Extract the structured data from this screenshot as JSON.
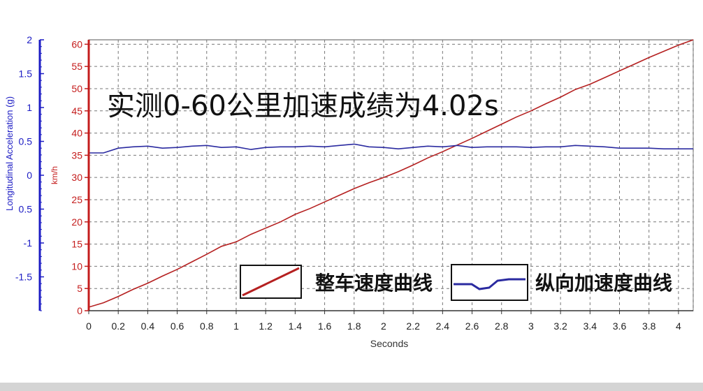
{
  "chart_data": {
    "type": "line",
    "title": "实测0-60公里加速成绩为4.02s",
    "xlabel": "Seconds",
    "y_left_outer_label": "Longitudinal Acceleration (g)",
    "y_left_inner_label": "km/h",
    "xlim": [
      0,
      4.1
    ],
    "ylim_speed": [
      0,
      61
    ],
    "ylim_accel": [
      -2,
      2
    ],
    "x_ticks": [
      "0",
      "0.2",
      "0.4",
      "0.6",
      "0.8",
      "1",
      "1.2",
      "1.4",
      "1.6",
      "1.8",
      "2",
      "2.2",
      "2.4",
      "2.6",
      "2.8",
      "3",
      "3.2",
      "3.4",
      "3.6",
      "3.8",
      "4"
    ],
    "speed_ticks": [
      "0",
      "5",
      "10",
      "15",
      "20",
      "25",
      "30",
      "35",
      "40",
      "45",
      "50",
      "55",
      "60"
    ],
    "accel_ticks": [
      "2",
      "1.5",
      "1",
      "0.5",
      "0",
      "0.5",
      "-1",
      "-1.5"
    ],
    "grid": true,
    "legend_placement": "bottom-right",
    "series": [
      {
        "name": "整车速度曲线",
        "axis": "speed",
        "color": "#b52020",
        "x": [
          0,
          0.1,
          0.2,
          0.3,
          0.4,
          0.5,
          0.6,
          0.7,
          0.8,
          0.9,
          1.0,
          1.1,
          1.2,
          1.3,
          1.4,
          1.5,
          1.6,
          1.7,
          1.8,
          1.9,
          2.0,
          2.1,
          2.2,
          2.3,
          2.4,
          2.5,
          2.6,
          2.7,
          2.8,
          2.9,
          3.0,
          3.1,
          3.2,
          3.3,
          3.4,
          3.5,
          3.6,
          3.7,
          3.8,
          3.9,
          4.0,
          4.1
        ],
        "values": [
          0.8,
          1.8,
          3.2,
          4.8,
          6.2,
          7.8,
          9.3,
          11.0,
          12.7,
          14.5,
          15.5,
          17.2,
          18.6,
          20.0,
          21.7,
          23.0,
          24.5,
          26.0,
          27.5,
          28.8,
          30.0,
          31.3,
          32.8,
          34.4,
          35.8,
          37.3,
          38.8,
          40.4,
          42.0,
          43.6,
          45.0,
          46.6,
          48.1,
          49.8,
          51.0,
          52.5,
          54.0,
          55.5,
          57.0,
          58.4,
          59.8,
          61.0
        ]
      },
      {
        "name": "纵向加速度曲线",
        "axis": "accel",
        "color": "#2a2aa0",
        "x": [
          0,
          0.1,
          0.2,
          0.3,
          0.4,
          0.5,
          0.6,
          0.7,
          0.8,
          0.9,
          1.0,
          1.1,
          1.2,
          1.3,
          1.4,
          1.5,
          1.6,
          1.7,
          1.8,
          1.9,
          2.0,
          2.1,
          2.2,
          2.3,
          2.4,
          2.5,
          2.6,
          2.7,
          2.8,
          2.9,
          3.0,
          3.1,
          3.2,
          3.3,
          3.4,
          3.5,
          3.6,
          3.7,
          3.8,
          3.9,
          4.0,
          4.1
        ],
        "values": [
          0.33,
          0.33,
          0.4,
          0.42,
          0.43,
          0.4,
          0.41,
          0.43,
          0.44,
          0.41,
          0.42,
          0.38,
          0.41,
          0.42,
          0.42,
          0.43,
          0.42,
          0.44,
          0.46,
          0.42,
          0.41,
          0.39,
          0.41,
          0.43,
          0.42,
          0.44,
          0.41,
          0.42,
          0.42,
          0.42,
          0.41,
          0.42,
          0.42,
          0.44,
          0.43,
          0.42,
          0.4,
          0.4,
          0.4,
          0.39,
          0.39,
          0.39
        ]
      }
    ]
  }
}
